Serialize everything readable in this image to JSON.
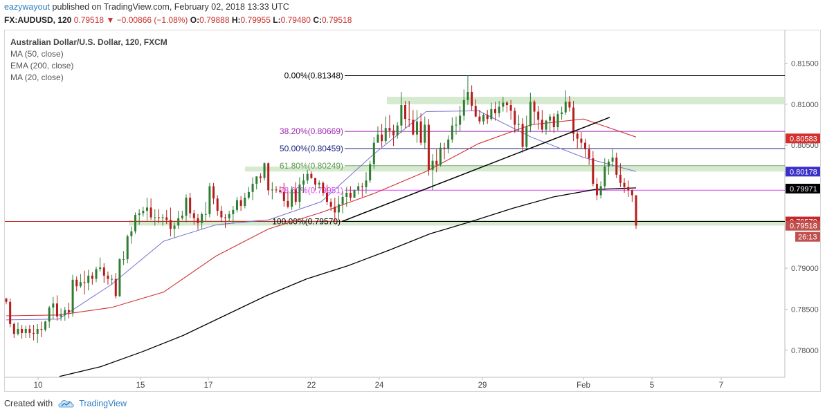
{
  "header": {
    "user": "eazywayout",
    "published": "published on TradingView.com, February 02, 2018 13:33 UTC"
  },
  "ohlc": {
    "symbol": "FX:AUDUSD, 120",
    "last": "0.79518",
    "arrow": "▼",
    "change": "−0.00866 (−1.08%)",
    "o_label": "O:",
    "o": "0.79888",
    "h_label": "H:",
    "h": "0.79955",
    "l_label": "L:",
    "l": "0.79480",
    "c_label": "C:",
    "c": "0.79518"
  },
  "legend": {
    "title": "Australian Dollar/U.S. Dollar, 120, FXCM",
    "ma50": "MA (50, close)",
    "ema200": "EMA (200, close)",
    "ma20": "MA (20, close)"
  },
  "footer": {
    "created_with": "Created with",
    "brand": "TradingView"
  },
  "colors": {
    "up": "#2e7d32",
    "down": "#b71c1c",
    "ema200": "#000000",
    "ma50": "#d32f2f",
    "ma20": "#7b6fd0",
    "zone": "#cfe6c8"
  },
  "chart_data": {
    "type": "candlestick",
    "ylim": [
      0.7767,
      0.819
    ],
    "x_ticks": [
      "10",
      "15",
      "17",
      "22",
      "24",
      "29",
      "Feb",
      "5",
      "7"
    ],
    "y_ticks": [
      "0.81500",
      "0.81000",
      "0.80500",
      "0.80000",
      "0.79500",
      "0.79000",
      "0.78500",
      "0.78000"
    ],
    "y_tick_values": [
      0.815,
      0.81,
      0.805,
      0.8,
      0.795,
      0.79,
      0.785,
      0.78
    ],
    "fib_levels": [
      {
        "label": "0.00%(0.81348)",
        "value": 0.81348,
        "color": "#000000"
      },
      {
        "label": "38.20%(0.80669)",
        "value": 0.80669,
        "color": "#9c27b0"
      },
      {
        "label": "50.00%(0.80459)",
        "value": 0.80459,
        "color": "#1a237e"
      },
      {
        "label": "61.80%(0.80249)",
        "value": 0.80249,
        "color": "#5b9b4f"
      },
      {
        "label": "78.60%(0.79951)",
        "value": 0.79951,
        "color": "#e040fb"
      },
      {
        "label": "100.00%(0.79570)",
        "value": 0.7957,
        "color": "#000000"
      }
    ],
    "price_badges": [
      {
        "label": "0.80583",
        "value": 0.80583,
        "color": "#d32f2f"
      },
      {
        "label": "0.80178",
        "value": 0.80178,
        "color": "#3b2fc9"
      },
      {
        "label": "0.79971",
        "value": 0.79971,
        "color": "#000000"
      },
      {
        "label": "0.79570",
        "value": 0.7957,
        "color": "#c62828"
      },
      {
        "label": "0.79518",
        "value": 0.79518,
        "color": "#c0504d"
      }
    ],
    "countdown": "26:13",
    "resistance_zone": [
      0.81,
      0.8109
    ],
    "support_zone_1": [
      0.8018,
      0.8024
    ],
    "support_zone_2": [
      0.7952,
      0.7959
    ],
    "trendline": {
      "from": 0.7957,
      "to": 0.8084
    },
    "ema200": [
      0.7768,
      0.778,
      0.7798,
      0.7818,
      0.7842,
      0.7866,
      0.7887,
      0.7903,
      0.7922,
      0.7942,
      0.7957,
      0.7973,
      0.7987,
      0.7996,
      0.7998
    ],
    "ma50": [
      0.7842,
      0.7843,
      0.7852,
      0.7871,
      0.7915,
      0.7948,
      0.7968,
      0.7991,
      0.8018,
      0.8052,
      0.8075,
      0.8082,
      0.806
    ],
    "ma20": [
      0.7837,
      0.7838,
      0.788,
      0.7933,
      0.7953,
      0.7959,
      0.7981,
      0.8039,
      0.8091,
      0.8092,
      0.806,
      0.8035,
      0.8018
    ],
    "candles": [
      [
        0.7863,
        0.7864,
        0.7856,
        0.7859
      ],
      [
        0.7859,
        0.7863,
        0.7828,
        0.7832
      ],
      [
        0.7832,
        0.7834,
        0.7815,
        0.782
      ],
      [
        0.782,
        0.7834,
        0.7818,
        0.7826
      ],
      [
        0.7826,
        0.7831,
        0.7814,
        0.7821
      ],
      [
        0.7821,
        0.783,
        0.7815,
        0.7826
      ],
      [
        0.7826,
        0.7831,
        0.7815,
        0.7821
      ],
      [
        0.7821,
        0.7831,
        0.7812,
        0.782
      ],
      [
        0.782,
        0.7832,
        0.7809,
        0.7826
      ],
      [
        0.7826,
        0.7835,
        0.7816,
        0.7825
      ],
      [
        0.7825,
        0.7836,
        0.7823,
        0.7835
      ],
      [
        0.7835,
        0.7854,
        0.7827,
        0.7852
      ],
      [
        0.7852,
        0.7865,
        0.7838,
        0.7857
      ],
      [
        0.7857,
        0.7867,
        0.7836,
        0.7841
      ],
      [
        0.7841,
        0.7851,
        0.7836,
        0.7843
      ],
      [
        0.7843,
        0.7853,
        0.7836,
        0.7849
      ],
      [
        0.7849,
        0.7858,
        0.7839,
        0.7846
      ],
      [
        0.7846,
        0.7892,
        0.7841,
        0.7886
      ],
      [
        0.7886,
        0.789,
        0.7872,
        0.7878
      ],
      [
        0.7878,
        0.7893,
        0.7876,
        0.7883
      ],
      [
        0.7883,
        0.7897,
        0.7868,
        0.7882
      ],
      [
        0.7882,
        0.7898,
        0.7873,
        0.7891
      ],
      [
        0.7891,
        0.7895,
        0.788,
        0.7887
      ],
      [
        0.7887,
        0.7902,
        0.7883,
        0.7899
      ],
      [
        0.7899,
        0.7913,
        0.7896,
        0.7901
      ],
      [
        0.7901,
        0.7906,
        0.7882,
        0.7891
      ],
      [
        0.7891,
        0.7896,
        0.788,
        0.7887
      ],
      [
        0.7887,
        0.7892,
        0.788,
        0.7887
      ],
      [
        0.7887,
        0.7894,
        0.7863,
        0.7866
      ],
      [
        0.7866,
        0.7912,
        0.7865,
        0.7911
      ],
      [
        0.7911,
        0.7921,
        0.7904,
        0.7911
      ],
      [
        0.7911,
        0.7941,
        0.7906,
        0.7939
      ],
      [
        0.7939,
        0.7951,
        0.793,
        0.7945
      ],
      [
        0.7945,
        0.7968,
        0.7942,
        0.7965
      ],
      [
        0.7965,
        0.7972,
        0.7953,
        0.7967
      ],
      [
        0.7967,
        0.7975,
        0.7963,
        0.797
      ],
      [
        0.797,
        0.7986,
        0.7958,
        0.7974
      ],
      [
        0.7974,
        0.7985,
        0.7959,
        0.7962
      ],
      [
        0.7962,
        0.7972,
        0.7952,
        0.7962
      ],
      [
        0.7962,
        0.7972,
        0.7955,
        0.7961
      ],
      [
        0.7961,
        0.7966,
        0.7952,
        0.7962
      ],
      [
        0.7962,
        0.7971,
        0.7954,
        0.7959
      ],
      [
        0.7959,
        0.7974,
        0.7939,
        0.7948
      ],
      [
        0.7948,
        0.7956,
        0.7937,
        0.7952
      ],
      [
        0.7952,
        0.797,
        0.7948,
        0.7961
      ],
      [
        0.7961,
        0.797,
        0.7959,
        0.7964
      ],
      [
        0.7964,
        0.799,
        0.7956,
        0.7986
      ],
      [
        0.7986,
        0.7992,
        0.7961,
        0.7967
      ],
      [
        0.7967,
        0.7971,
        0.7953,
        0.7961
      ],
      [
        0.7961,
        0.7966,
        0.7947,
        0.7955
      ],
      [
        0.7955,
        0.7968,
        0.7948,
        0.7966
      ],
      [
        0.7966,
        0.7981,
        0.7957,
        0.7966
      ],
      [
        0.7966,
        0.8004,
        0.7962,
        0.8
      ],
      [
        0.8,
        0.8004,
        0.7978,
        0.7985
      ],
      [
        0.7985,
        0.7989,
        0.7964,
        0.797
      ],
      [
        0.797,
        0.7976,
        0.7956,
        0.7962
      ],
      [
        0.7962,
        0.7966,
        0.7949,
        0.7961
      ],
      [
        0.7961,
        0.797,
        0.7957,
        0.7966
      ],
      [
        0.7966,
        0.7976,
        0.7955,
        0.7971
      ],
      [
        0.7971,
        0.7987,
        0.7968,
        0.7983
      ],
      [
        0.7983,
        0.7988,
        0.797,
        0.7976
      ],
      [
        0.7976,
        0.7992,
        0.7973,
        0.7986
      ],
      [
        0.7986,
        0.7999,
        0.7984,
        0.7993
      ],
      [
        0.7993,
        0.8011,
        0.7983,
        0.8003
      ],
      [
        0.8003,
        0.8012,
        0.7996,
        0.8012
      ],
      [
        0.8012,
        0.8016,
        0.8004,
        0.801
      ],
      [
        0.801,
        0.8029,
        0.8007,
        0.8028
      ],
      [
        0.8028,
        0.8029,
        0.7989,
        0.7995
      ],
      [
        0.7995,
        0.8005,
        0.7984,
        0.7996
      ],
      [
        0.7996,
        0.8,
        0.7992,
        0.7995
      ],
      [
        0.7995,
        0.8,
        0.7991,
        0.7993
      ],
      [
        0.7993,
        0.8004,
        0.7975,
        0.7982
      ],
      [
        0.7982,
        0.7994,
        0.7973,
        0.7975
      ],
      [
        0.7975,
        0.8,
        0.7971,
        0.7996
      ],
      [
        0.7996,
        0.8005,
        0.7977,
        0.7981
      ],
      [
        0.7981,
        0.8011,
        0.7973,
        0.8002
      ],
      [
        0.8002,
        0.8015,
        0.7992,
        0.8007
      ],
      [
        0.8007,
        0.802,
        0.8003,
        0.8015
      ],
      [
        0.8015,
        0.8018,
        0.8009,
        0.801
      ],
      [
        0.801,
        0.801,
        0.7995,
        0.8002
      ],
      [
        0.8002,
        0.8007,
        0.7997,
        0.8004
      ],
      [
        0.8004,
        0.8006,
        0.7988,
        0.7992
      ],
      [
        0.7992,
        0.8002,
        0.7977,
        0.7981
      ],
      [
        0.7981,
        0.7985,
        0.797,
        0.7975
      ],
      [
        0.7975,
        0.7986,
        0.7957,
        0.7968
      ],
      [
        0.7968,
        0.7988,
        0.7961,
        0.7978
      ],
      [
        0.7978,
        0.7994,
        0.7967,
        0.7987
      ],
      [
        0.7987,
        0.7999,
        0.7975,
        0.7992
      ],
      [
        0.7992,
        0.8,
        0.7982,
        0.7986
      ],
      [
        0.7986,
        0.7996,
        0.7986,
        0.7995
      ],
      [
        0.7995,
        0.8004,
        0.799,
        0.8
      ],
      [
        0.8,
        0.8004,
        0.7987,
        0.7999
      ],
      [
        0.7999,
        0.8017,
        0.7991,
        0.8007
      ],
      [
        0.8007,
        0.8031,
        0.8004,
        0.8027
      ],
      [
        0.8027,
        0.806,
        0.8021,
        0.8053
      ],
      [
        0.8053,
        0.8073,
        0.8053,
        0.8063
      ],
      [
        0.8063,
        0.8076,
        0.8048,
        0.8055
      ],
      [
        0.8055,
        0.8085,
        0.8052,
        0.8071
      ],
      [
        0.8071,
        0.8087,
        0.8059,
        0.8068
      ],
      [
        0.8068,
        0.8075,
        0.8049,
        0.8062
      ],
      [
        0.8062,
        0.8078,
        0.8058,
        0.8074
      ],
      [
        0.8074,
        0.8115,
        0.8065,
        0.8099
      ],
      [
        0.8099,
        0.8104,
        0.8071,
        0.8082
      ],
      [
        0.8082,
        0.8104,
        0.8072,
        0.8081
      ],
      [
        0.8081,
        0.8093,
        0.8062,
        0.8063
      ],
      [
        0.8063,
        0.8093,
        0.8053,
        0.8079
      ],
      [
        0.8079,
        0.8089,
        0.805,
        0.8053
      ],
      [
        0.8053,
        0.8085,
        0.8045,
        0.8075
      ],
      [
        0.8075,
        0.8082,
        0.8013,
        0.802
      ],
      [
        0.802,
        0.8039,
        0.7995,
        0.8031
      ],
      [
        0.8031,
        0.8045,
        0.8017,
        0.8026
      ],
      [
        0.8026,
        0.8053,
        0.8024,
        0.8047
      ],
      [
        0.8047,
        0.8053,
        0.8033,
        0.8046
      ],
      [
        0.8046,
        0.8062,
        0.804,
        0.8057
      ],
      [
        0.8057,
        0.8084,
        0.8053,
        0.8074
      ],
      [
        0.8074,
        0.8085,
        0.8063,
        0.8075
      ],
      [
        0.8075,
        0.8098,
        0.8067,
        0.8086
      ],
      [
        0.8086,
        0.8118,
        0.808,
        0.8105
      ],
      [
        0.8105,
        0.8135,
        0.8099,
        0.8115
      ],
      [
        0.8115,
        0.8123,
        0.8092,
        0.8098
      ],
      [
        0.8098,
        0.8106,
        0.8084,
        0.8085
      ],
      [
        0.8085,
        0.8093,
        0.8076,
        0.8079
      ],
      [
        0.8079,
        0.8089,
        0.8075,
        0.8087
      ],
      [
        0.8087,
        0.8093,
        0.8076,
        0.8082
      ],
      [
        0.8082,
        0.8102,
        0.808,
        0.8094
      ],
      [
        0.8094,
        0.8103,
        0.808,
        0.8089
      ],
      [
        0.8089,
        0.8104,
        0.8084,
        0.8097
      ],
      [
        0.8097,
        0.8109,
        0.8091,
        0.8102
      ],
      [
        0.8102,
        0.8104,
        0.809,
        0.8099
      ],
      [
        0.8099,
        0.8105,
        0.8081,
        0.8092
      ],
      [
        0.8092,
        0.8096,
        0.8065,
        0.8075
      ],
      [
        0.8075,
        0.8087,
        0.8067,
        0.8076
      ],
      [
        0.8076,
        0.8083,
        0.8041,
        0.8048
      ],
      [
        0.8048,
        0.8086,
        0.8044,
        0.8073
      ],
      [
        0.8073,
        0.8114,
        0.8066,
        0.8103
      ],
      [
        0.8103,
        0.8105,
        0.8076,
        0.8091
      ],
      [
        0.8091,
        0.8098,
        0.8069,
        0.8081
      ],
      [
        0.8081,
        0.8093,
        0.8065,
        0.8069
      ],
      [
        0.8069,
        0.8081,
        0.8063,
        0.808
      ],
      [
        0.808,
        0.8088,
        0.8067,
        0.8085
      ],
      [
        0.8085,
        0.8089,
        0.8065,
        0.8072
      ],
      [
        0.8072,
        0.8092,
        0.8068,
        0.8088
      ],
      [
        0.8088,
        0.8097,
        0.8081,
        0.809
      ],
      [
        0.809,
        0.8117,
        0.8087,
        0.8103
      ],
      [
        0.8103,
        0.811,
        0.8091,
        0.8096
      ],
      [
        0.8096,
        0.8104,
        0.8055,
        0.8064
      ],
      [
        0.8064,
        0.8067,
        0.8046,
        0.8058
      ],
      [
        0.8058,
        0.8066,
        0.8046,
        0.8053
      ],
      [
        0.8053,
        0.8058,
        0.8035,
        0.8045
      ],
      [
        0.8045,
        0.8051,
        0.8026,
        0.8034
      ],
      [
        0.8034,
        0.8043,
        0.8,
        0.8003
      ],
      [
        0.8003,
        0.801,
        0.7983,
        0.7989
      ],
      [
        0.7989,
        0.8006,
        0.7985,
        0.8
      ],
      [
        0.8,
        0.8034,
        0.7995,
        0.8024
      ],
      [
        0.8024,
        0.8033,
        0.8014,
        0.803
      ],
      [
        0.803,
        0.8045,
        0.8024,
        0.8035
      ],
      [
        0.8035,
        0.8041,
        0.801,
        0.8014
      ],
      [
        0.8014,
        0.8028,
        0.7999,
        0.8004
      ],
      [
        0.8004,
        0.801,
        0.7992,
        0.7999
      ],
      [
        0.7999,
        0.8007,
        0.7987,
        0.7995
      ],
      [
        0.7995,
        0.7996,
        0.7981,
        0.7989
      ],
      [
        0.7989,
        0.7989,
        0.7948,
        0.7952
      ]
    ]
  }
}
